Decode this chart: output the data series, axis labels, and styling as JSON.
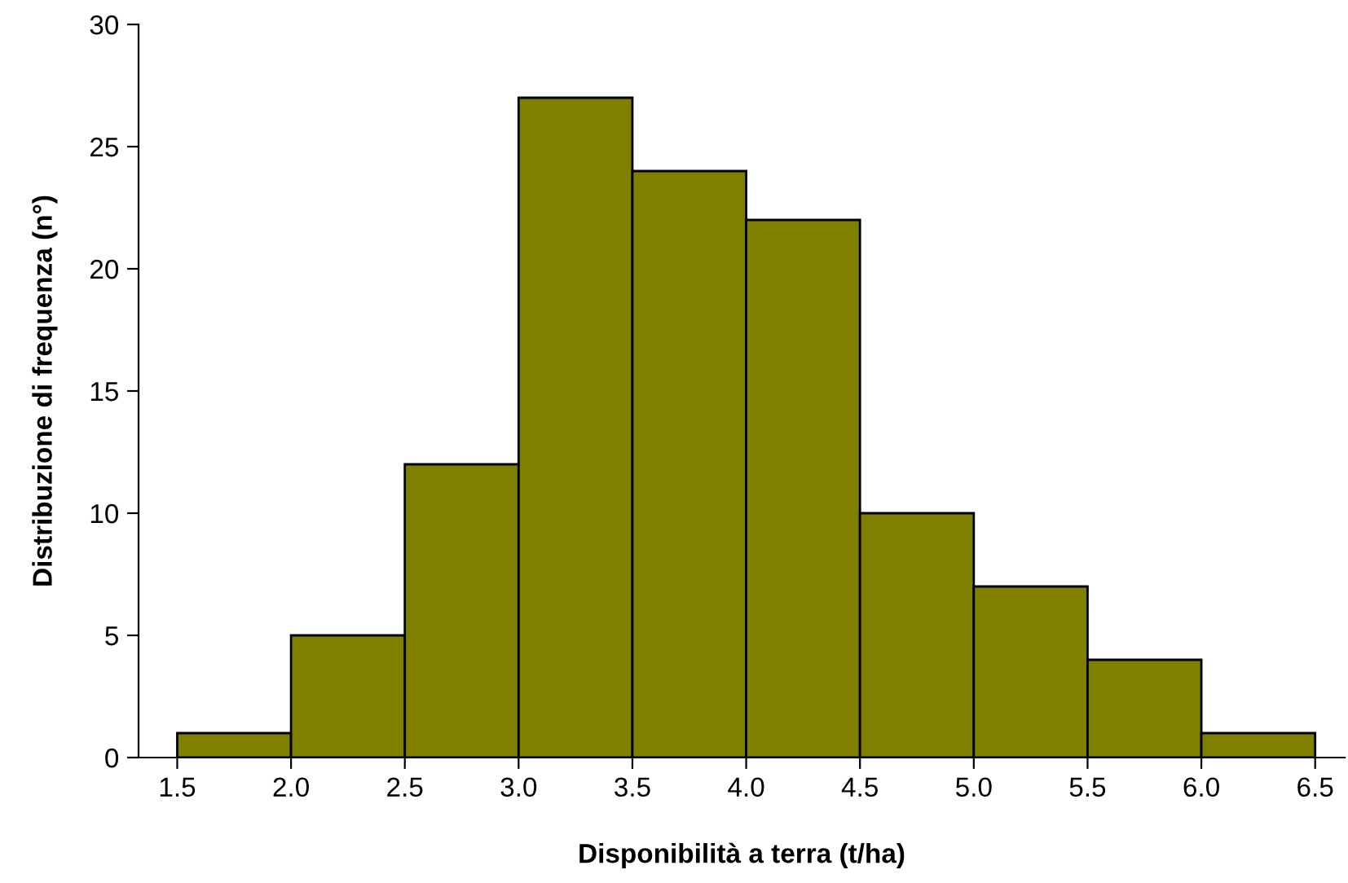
{
  "chart_data": {
    "type": "histogram",
    "xlabel": "Disponibilità a terra (t/ha)",
    "ylabel": "Distribuzione di frequenza (n°)",
    "bins": [
      1.5,
      2.0,
      2.5,
      3.0,
      3.5,
      4.0,
      4.5,
      5.0,
      5.5,
      6.0,
      6.5
    ],
    "values": [
      1,
      5,
      12,
      27,
      24,
      22,
      10,
      7,
      4,
      1
    ],
    "color": "#808000",
    "xlim": [
      1.33,
      6.63
    ],
    "xticks": [
      {
        "value": 1.5,
        "label": "1.5"
      },
      {
        "value": 2.0,
        "label": "2.0"
      },
      {
        "value": 2.5,
        "label": "2.5"
      },
      {
        "value": 3.0,
        "label": "3.0"
      },
      {
        "value": 3.5,
        "label": "3.5"
      },
      {
        "value": 4.0,
        "label": "4.0"
      },
      {
        "value": 4.5,
        "label": "4.5"
      },
      {
        "value": 5.0,
        "label": "5.0"
      },
      {
        "value": 5.5,
        "label": "5.5"
      },
      {
        "value": 6.0,
        "label": "6.0"
      },
      {
        "value": 6.5,
        "label": "6.5"
      }
    ],
    "ylim": [
      0,
      30
    ],
    "yticks": [
      0,
      5,
      10,
      15,
      20,
      25,
      30
    ],
    "grid": false,
    "legend": false
  }
}
